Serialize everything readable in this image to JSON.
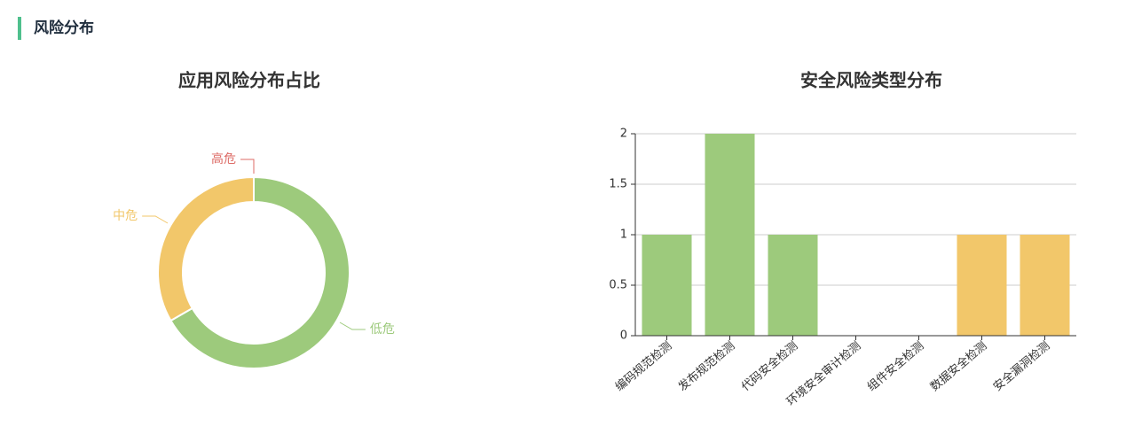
{
  "header": {
    "title": "风险分布"
  },
  "chart_data": [
    {
      "type": "pie",
      "title": "应用风险分布占比",
      "categories": [
        "低危",
        "中危",
        "高危"
      ],
      "values": [
        4,
        2,
        0
      ],
      "colors": [
        "#9dca7c",
        "#f2c76a",
        "#dd6b66"
      ],
      "donut": true
    },
    {
      "type": "bar",
      "title": "安全风险类型分布",
      "categories": [
        "编码规范检测",
        "发布规范检测",
        "代码安全检测",
        "环境安全审计检测",
        "组件安全检测",
        "数据安全检测",
        "安全漏洞检测"
      ],
      "values": [
        1,
        2,
        1,
        0,
        0,
        1,
        1
      ],
      "colors": [
        "#9dca7c",
        "#9dca7c",
        "#9dca7c",
        "#9dca7c",
        "#9dca7c",
        "#f2c76a",
        "#f2c76a"
      ],
      "ylim": [
        0,
        2
      ],
      "yticks": [
        0,
        0.5,
        1,
        1.5,
        2
      ],
      "grid": true
    }
  ]
}
